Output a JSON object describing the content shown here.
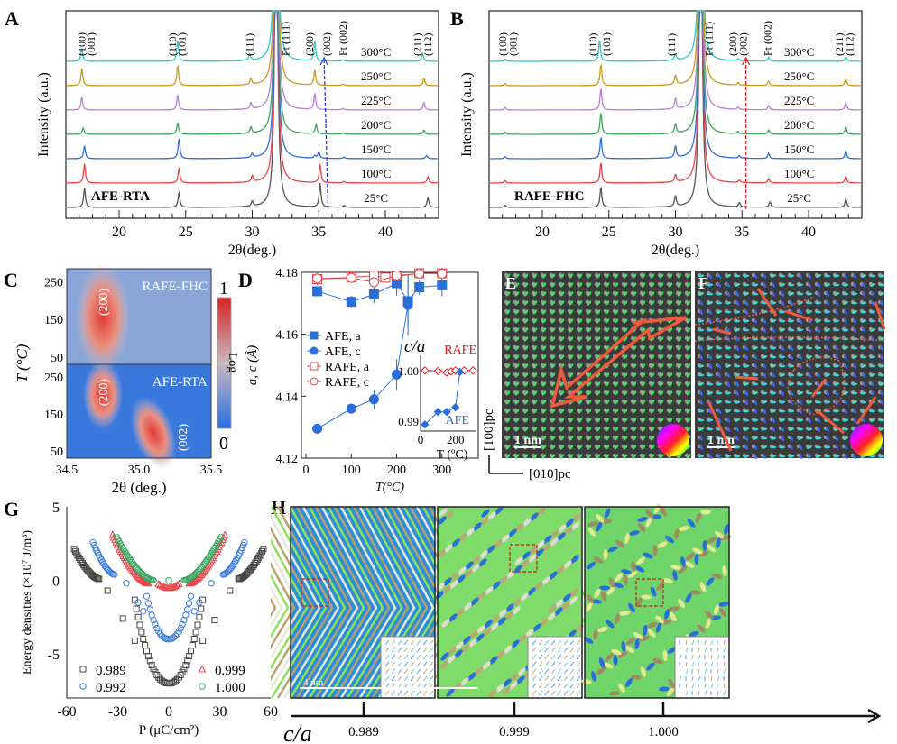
{
  "panel_letters": [
    "A",
    "B",
    "C",
    "D",
    "E",
    "F",
    "G",
    "H"
  ],
  "chart_data": [
    {
      "id": "A",
      "type": "line",
      "title": "",
      "sample_label": "AFE-RTA",
      "xlabel": "2θ(deg.)",
      "ylabel": "Intensity (a.u.)",
      "xlim": [
        16,
        44
      ],
      "xticks": [
        20,
        25,
        30,
        35,
        40
      ],
      "peak_labels": [
        {
          "label": "(100)",
          "x": 17.2
        },
        {
          "label": "(001)",
          "x": 17.9
        },
        {
          "label": "(110)",
          "x": 24.0
        },
        {
          "label": "(101)",
          "x": 24.7
        },
        {
          "label": "(111)",
          "x": 29.8
        },
        {
          "label": "Pt (111)",
          "x": 32.5
        },
        {
          "label": "(200)",
          "x": 34.3
        },
        {
          "label": "(002)",
          "x": 35.6
        },
        {
          "label": "Pt (002)",
          "x": 36.8
        },
        {
          "label": "(211)",
          "x": 42.4
        },
        {
          "label": "(112)",
          "x": 43.2
        }
      ],
      "series": [
        {
          "name": "25°C",
          "color": "#555555",
          "peaks": [
            [
              17.4,
              0.9
            ],
            [
              24.5,
              0.7
            ],
            [
              30.0,
              0.25
            ],
            [
              35.1,
              1.1
            ],
            [
              36.9,
              0.08
            ],
            [
              43.2,
              0.45
            ]
          ]
        },
        {
          "name": "100°C",
          "color": "#e8424a",
          "peaks": [
            [
              17.4,
              0.9
            ],
            [
              24.5,
              0.7
            ],
            [
              30.0,
              0.3
            ],
            [
              35.1,
              0.85
            ],
            [
              36.9,
              0.07
            ],
            [
              43.2,
              0.3
            ]
          ]
        },
        {
          "name": "150°C",
          "color": "#2f6fd6",
          "peaks": [
            [
              17.4,
              0.6
            ],
            [
              24.5,
              0.95
            ],
            [
              30.0,
              0.2
            ],
            [
              34.7,
              0.12
            ],
            [
              35.0,
              0.3
            ],
            [
              36.9,
              0.07
            ],
            [
              43.1,
              0.15
            ]
          ]
        },
        {
          "name": "200°C",
          "color": "#3aa660",
          "peaks": [
            [
              17.3,
              0.3
            ],
            [
              24.4,
              0.55
            ],
            [
              29.9,
              0.3
            ],
            [
              34.8,
              0.45
            ],
            [
              36.8,
              0.06
            ],
            [
              42.9,
              0.2
            ]
          ]
        },
        {
          "name": "225°C",
          "color": "#b77fd8",
          "peaks": [
            [
              17.2,
              0.6
            ],
            [
              24.4,
              0.7
            ],
            [
              29.9,
              0.3
            ],
            [
              34.7,
              0.75
            ],
            [
              36.8,
              0.06
            ],
            [
              42.9,
              0.35
            ]
          ]
        },
        {
          "name": "250°C",
          "color": "#cc9a1a",
          "peaks": [
            [
              17.2,
              0.8
            ],
            [
              24.4,
              0.95
            ],
            [
              29.9,
              0.3
            ],
            [
              34.7,
              0.7
            ],
            [
              36.8,
              0.07
            ],
            [
              42.9,
              0.35
            ]
          ]
        },
        {
          "name": "300°C",
          "color": "#2ecbc8",
          "peaks": [
            [
              17.2,
              0.6
            ],
            [
              24.4,
              0.95
            ],
            [
              29.8,
              0.3
            ],
            [
              34.7,
              0.95
            ],
            [
              36.8,
              0.07
            ],
            [
              42.8,
              0.35
            ]
          ]
        }
      ],
      "pt_peak": 31.8,
      "arrow": {
        "color": "#1a2ef0",
        "x_from": 35.7,
        "x_to": 35.4
      }
    },
    {
      "id": "B",
      "type": "line",
      "sample_label": "RAFE-FHC",
      "xlabel": "2θ(deg.)",
      "ylabel": "Intensity (a.u.)",
      "xlim": [
        16,
        44
      ],
      "xticks": [
        20,
        25,
        30,
        35,
        40
      ],
      "peak_labels": [
        {
          "label": "(100)",
          "x": 17.0
        },
        {
          "label": "(001)",
          "x": 17.8
        },
        {
          "label": "(110)",
          "x": 23.8
        },
        {
          "label": "(101)",
          "x": 24.8
        },
        {
          "label": "(111)",
          "x": 29.7
        },
        {
          "label": "Pt (111)",
          "x": 32.5
        },
        {
          "label": "(200)",
          "x": 34.3
        },
        {
          "label": "(002)",
          "x": 35.1
        },
        {
          "label": "Pt (002)",
          "x": 36.9
        },
        {
          "label": "(211)",
          "x": 42.3
        },
        {
          "label": "(112)",
          "x": 43.1
        }
      ],
      "series": [
        {
          "name": "25°C",
          "color": "#555555",
          "peaks": [
            [
              17.2,
              0.1
            ],
            [
              24.4,
              0.95
            ],
            [
              30.0,
              0.5
            ],
            [
              34.8,
              0.2
            ],
            [
              37.1,
              0.25
            ],
            [
              42.8,
              0.4
            ]
          ]
        },
        {
          "name": "100°C",
          "color": "#e8424a",
          "peaks": [
            [
              17.2,
              0.12
            ],
            [
              24.4,
              0.95
            ],
            [
              30.0,
              0.35
            ],
            [
              34.8,
              0.12
            ],
            [
              37.0,
              0.2
            ],
            [
              42.8,
              0.3
            ]
          ]
        },
        {
          "name": "150°C",
          "color": "#2f6fd6",
          "peaks": [
            [
              17.2,
              0.1
            ],
            [
              24.4,
              1.0
            ],
            [
              30.0,
              0.55
            ],
            [
              34.8,
              0.12
            ],
            [
              37.0,
              0.25
            ],
            [
              42.8,
              0.35
            ]
          ]
        },
        {
          "name": "200°C",
          "color": "#3aa660",
          "peaks": [
            [
              17.2,
              0.1
            ],
            [
              24.4,
              1.0
            ],
            [
              30.0,
              0.45
            ],
            [
              34.7,
              0.12
            ],
            [
              37.0,
              0.2
            ],
            [
              42.8,
              0.35
            ]
          ]
        },
        {
          "name": "225°C",
          "color": "#b77fd8",
          "peaks": [
            [
              17.2,
              0.12
            ],
            [
              24.4,
              1.0
            ],
            [
              30.0,
              0.5
            ],
            [
              34.7,
              0.12
            ],
            [
              37.0,
              0.2
            ],
            [
              42.8,
              0.35
            ]
          ]
        },
        {
          "name": "250°C",
          "color": "#cc9a1a",
          "peaks": [
            [
              17.2,
              0.1
            ],
            [
              24.4,
              1.0
            ],
            [
              30.0,
              0.45
            ],
            [
              34.7,
              0.12
            ],
            [
              37.0,
              0.2
            ],
            [
              42.8,
              0.3
            ]
          ]
        },
        {
          "name": "300°C",
          "color": "#2ecbc8",
          "peaks": [
            [
              17.2,
              0.1
            ],
            [
              24.3,
              1.0
            ],
            [
              30.0,
              0.3
            ],
            [
              34.7,
              0.1
            ],
            [
              37.0,
              0.18
            ],
            [
              42.8,
              0.2
            ]
          ]
        }
      ],
      "pt_peak": 31.9,
      "arrow": {
        "color": "#e0161a",
        "x_from": 35.3,
        "x_to": 35.3
      }
    },
    {
      "id": "C",
      "type": "heatmap",
      "xlabel": "2θ (deg.)",
      "ylabel": "T (°C)",
      "xlim": [
        34.5,
        35.5
      ],
      "xticks": [
        "34.5",
        "35.0",
        "35.5"
      ],
      "yticks": [
        "50",
        "150",
        "250"
      ],
      "colorbar": {
        "label": "Log",
        "min": "0",
        "max": "1"
      },
      "subpanels": [
        {
          "name": "RAFE-FHC",
          "annotations": [
            {
              "text": "(200)",
              "x": 34.75
            }
          ]
        },
        {
          "name": "AFE-RTA",
          "annotations": [
            {
              "text": "(200)",
              "x": 34.75
            },
            {
              "text": "(002)",
              "x": 35.3
            }
          ]
        }
      ]
    },
    {
      "id": "D",
      "type": "scatter",
      "xlabel": "T(°C)",
      "ylabel": "a, c (Å)",
      "xlim": [
        -10,
        380
      ],
      "ylim": [
        4.12,
        4.18
      ],
      "xticks": [
        0,
        100,
        200,
        300
      ],
      "yticks": [
        "4.12",
        "4.14",
        "4.16",
        "4.18"
      ],
      "series": [
        {
          "name": "AFE, a",
          "color": "#2a6fd8",
          "marker": "square-filled",
          "x": [
            25,
            100,
            150,
            200,
            225,
            250,
            300
          ],
          "y": [
            4.1739,
            4.1705,
            4.1729,
            4.1765,
            4.1707,
            4.1752,
            4.1758
          ],
          "err": [
            0,
            0.002,
            0.003,
            0.004,
            0.008,
            0.0025,
            0.0035
          ]
        },
        {
          "name": "AFE, c",
          "color": "#2a6fd8",
          "marker": "circle-filled",
          "x": [
            25,
            100,
            150,
            200,
            225
          ],
          "y": [
            4.1295,
            4.136,
            4.139,
            4.147,
            4.1695
          ],
          "err": [
            0,
            0,
            0.003,
            0.005,
            0.01
          ]
        },
        {
          "name": "RAFE, a",
          "color": "#e8424a",
          "marker": "square-open",
          "x": [
            25,
            100,
            150,
            175,
            200,
            250,
            300
          ],
          "y": [
            4.1778,
            4.1784,
            4.1789,
            4.1783,
            4.1787,
            4.1797,
            4.1797
          ],
          "err": [
            0.002,
            0.001,
            0.001,
            0.001,
            0.001,
            0.001,
            0.001
          ]
        },
        {
          "name": "RAFE, c",
          "color": "#e8424a",
          "marker": "circle-open",
          "x": [
            25,
            100,
            150,
            200,
            250,
            300
          ],
          "y": [
            4.178,
            4.1782,
            4.1768,
            4.179,
            4.1796,
            4.1796
          ],
          "err": [
            0,
            0,
            0,
            0,
            0,
            0
          ]
        }
      ],
      "inset": {
        "title": "c/a",
        "xlabel": "T (ºC)",
        "xticks": [
          0,
          200
        ],
        "yticks": [
          "0.99",
          "1.00"
        ],
        "ylim": [
          0.988,
          1.003
        ],
        "series": [
          {
            "name": "RAFE",
            "color": "#e0161a",
            "marker": "diamond-open",
            "x": [
              25,
              100,
              150,
              175,
              200,
              250,
              300
            ],
            "y": [
              1.0,
              0.9999,
              0.9996,
              0.9998,
              1.0,
              1.0,
              1.0
            ]
          },
          {
            "name": "AFE",
            "color": "#2a6fd8",
            "marker": "diamond-filled",
            "x": [
              25,
              100,
              150,
              200,
              225
            ],
            "y": [
              0.9893,
              0.9918,
              0.9918,
              0.9927,
              0.9997
            ]
          }
        ]
      }
    },
    {
      "id": "G",
      "type": "scatter",
      "xlabel": "P (μC/cm²)",
      "ylabel": "Energy densities (×10⁷ J/m³)",
      "xlim": [
        -60,
        60
      ],
      "ylim": [
        -8,
        5
      ],
      "xticks": [
        "-60",
        "-30",
        "0",
        "30",
        "60"
      ],
      "yticks": [
        "-5",
        "0",
        "5"
      ],
      "series": [
        {
          "name": "0.989",
          "color": "#444444",
          "marker": "square-open",
          "center": -7.0,
          "inner_half_width": 20,
          "outer_start": 41,
          "outer_end": 56,
          "outer_y": [
            0.1,
            2.2
          ],
          "isolated": [
            [
              -36,
              -0.7
            ],
            [
              36,
              -0.7
            ],
            [
              -27,
              -2.6
            ],
            [
              27,
              -2.7
            ],
            [
              -20,
              -4.1
            ],
            [
              20,
              -4.1
            ]
          ]
        },
        {
          "name": "0.992",
          "color": "#3b7ddd",
          "marker": "circle-open",
          "center": -4.0,
          "inner_half_width": 13,
          "outer_start": 32,
          "outer_end": 45,
          "outer_y": [
            0.4,
            2.7
          ],
          "isolated": [
            [
              -25,
              -0.2
            ],
            [
              25,
              -0.2
            ],
            [
              -18,
              -1.5
            ],
            [
              18,
              -1.5
            ],
            [
              -15,
              -2.1
            ],
            [
              15,
              -2.1
            ]
          ]
        },
        {
          "name": "0.999",
          "color": "#e8424a",
          "marker": "triangle-open",
          "center": -0.5,
          "inner_half_width": 6,
          "outer_start": 12,
          "outer_end": 33,
          "outer_y": [
            -0.2,
            3.1
          ],
          "isolated": []
        },
        {
          "name": "1.000",
          "color": "#3aa660",
          "marker": "circle-open",
          "center": 0.0,
          "inner_half_width": 0,
          "outer_start": 9,
          "outer_end": 31,
          "outer_y": [
            0.0,
            3.0
          ],
          "isolated": [
            [
              0,
              0.0
            ]
          ]
        }
      ]
    }
  ],
  "panel_E": {
    "scale_bar": "1 nm",
    "axis_vertical": "[100]pc",
    "axis_horizontal": "[010]pc"
  },
  "panel_F": {
    "scale_bar": "1 nm"
  },
  "panel_H": {
    "scale_bar": "4 nm",
    "axis_label": "c/a",
    "ticks": [
      "0.989",
      "0.999",
      "1.000"
    ]
  }
}
